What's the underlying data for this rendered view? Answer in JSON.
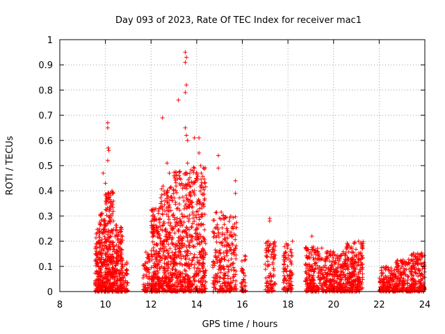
{
  "chart_data": {
    "type": "scatter",
    "title": "Day 093 of 2023, Rate Of TEC Index for receiver mac1",
    "xlabel": "GPS time / hours",
    "ylabel": "ROTI / TECUs",
    "xlim": [
      8,
      24
    ],
    "ylim": [
      0,
      1
    ],
    "x_ticks": [
      "8",
      "10",
      "12",
      "14",
      "16",
      "18",
      "20",
      "22",
      "24"
    ],
    "y_ticks": [
      "0",
      "0.1",
      "0.2",
      "0.3",
      "0.4",
      "0.5",
      "0.6",
      "0.7",
      "0.8",
      "0.9",
      "1"
    ],
    "grid": true,
    "marker": "+",
    "color": "#ff0000",
    "outliers": [
      [
        10.1,
        0.67
      ],
      [
        10.1,
        0.65
      ],
      [
        10.12,
        0.57
      ],
      [
        10.15,
        0.56
      ],
      [
        10.1,
        0.52
      ],
      [
        9.9,
        0.47
      ],
      [
        10.0,
        0.43
      ],
      [
        12.5,
        0.69
      ],
      [
        13.2,
        0.76
      ],
      [
        13.5,
        0.95
      ],
      [
        13.55,
        0.93
      ],
      [
        13.5,
        0.91
      ],
      [
        13.55,
        0.82
      ],
      [
        13.5,
        0.79
      ],
      [
        13.5,
        0.65
      ],
      [
        13.55,
        0.62
      ],
      [
        13.6,
        0.6
      ],
      [
        13.9,
        0.61
      ],
      [
        14.1,
        0.61
      ],
      [
        14.1,
        0.55
      ],
      [
        12.7,
        0.51
      ],
      [
        12.8,
        0.47
      ],
      [
        13.6,
        0.51
      ],
      [
        13.7,
        0.47
      ],
      [
        13.9,
        0.49
      ],
      [
        14.0,
        0.47
      ],
      [
        14.2,
        0.47
      ],
      [
        14.95,
        0.54
      ],
      [
        14.95,
        0.49
      ],
      [
        15.7,
        0.44
      ],
      [
        15.7,
        0.39
      ],
      [
        17.2,
        0.29
      ],
      [
        17.2,
        0.28
      ],
      [
        18.2,
        0.2
      ],
      [
        19.05,
        0.22
      ]
    ],
    "clusters": [
      {
        "x": [
          9.55,
          9.75
        ],
        "ymax": 0.25,
        "n": 90
      },
      {
        "x": [
          9.75,
          10.0
        ],
        "ymax": 0.32,
        "n": 140
      },
      {
        "x": [
          10.0,
          10.35
        ],
        "ymax": 0.4,
        "n": 230
      },
      {
        "x": [
          10.35,
          10.75
        ],
        "ymax": 0.27,
        "n": 170
      },
      {
        "x": [
          10.75,
          11.0
        ],
        "ymax": 0.12,
        "n": 40
      },
      {
        "x": [
          11.65,
          11.95
        ],
        "ymax": 0.16,
        "n": 60
      },
      {
        "x": [
          12.0,
          12.4
        ],
        "ymax": 0.34,
        "n": 200
      },
      {
        "x": [
          12.4,
          13.0
        ],
        "ymax": 0.42,
        "n": 260
      },
      {
        "x": [
          13.0,
          13.7
        ],
        "ymax": 0.48,
        "n": 300
      },
      {
        "x": [
          13.7,
          14.4
        ],
        "ymax": 0.5,
        "n": 280
      },
      {
        "x": [
          14.7,
          15.2
        ],
        "ymax": 0.32,
        "n": 120
      },
      {
        "x": [
          15.2,
          15.75
        ],
        "ymax": 0.3,
        "n": 140
      },
      {
        "x": [
          15.95,
          16.15
        ],
        "ymax": 0.15,
        "n": 40
      },
      {
        "x": [
          17.0,
          17.45
        ],
        "ymax": 0.2,
        "n": 90
      },
      {
        "x": [
          17.8,
          18.2
        ],
        "ymax": 0.19,
        "n": 90
      },
      {
        "x": [
          18.75,
          19.5
        ],
        "ymax": 0.18,
        "n": 190
      },
      {
        "x": [
          19.5,
          20.5
        ],
        "ymax": 0.16,
        "n": 260
      },
      {
        "x": [
          20.5,
          21.3
        ],
        "ymax": 0.2,
        "n": 240
      },
      {
        "x": [
          22.0,
          22.7
        ],
        "ymax": 0.1,
        "n": 150
      },
      {
        "x": [
          22.7,
          23.4
        ],
        "ymax": 0.13,
        "n": 160
      },
      {
        "x": [
          23.4,
          24.0
        ],
        "ymax": 0.16,
        "n": 170
      }
    ]
  }
}
